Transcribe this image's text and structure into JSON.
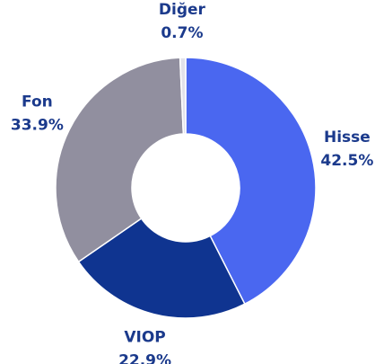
{
  "chart_data": {
    "type": "donut",
    "categories": [
      "Hisse",
      "VIOP",
      "Fon",
      "Diğer"
    ],
    "values": [
      42.5,
      22.9,
      33.9,
      0.7
    ],
    "value_labels": [
      "42.5%",
      "22.9%",
      "33.9%",
      "0.7%"
    ],
    "colors": [
      "#4a67f0",
      "#0f3490",
      "#918f9f",
      "#e2e2ea"
    ]
  }
}
